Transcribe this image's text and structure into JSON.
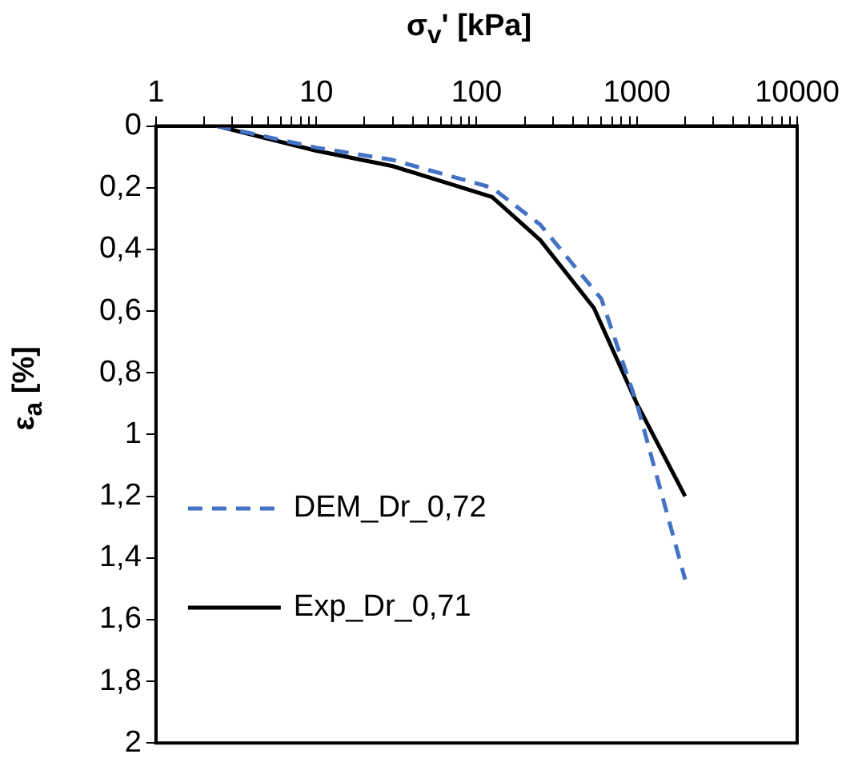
{
  "chart_data": {
    "type": "line",
    "xlabel": "σ$_{v}$' [kPa]",
    "ylabel": "ε$_{a}$ [%]",
    "log": "x",
    "xlim": [
      1,
      10000
    ],
    "xticks": [
      1,
      {
        "value": 2,
        "label": null
      },
      {
        "value": 3,
        "label": null
      },
      {
        "value": 4,
        "label": null
      },
      {
        "value": 5,
        "label": null
      },
      {
        "value": 6,
        "label": null
      },
      {
        "value": 7,
        "label": null
      },
      {
        "value": 8,
        "label": null
      },
      {
        "value": 9,
        "label": null
      },
      10,
      {
        "value": 20,
        "label": null
      },
      {
        "value": 30,
        "label": null
      },
      {
        "value": 40,
        "label": null
      },
      {
        "value": 50,
        "label": null
      },
      {
        "value": 60,
        "label": null
      },
      {
        "value": 70,
        "label": null
      },
      {
        "value": 80,
        "label": null
      },
      {
        "value": 90,
        "label": null
      },
      100,
      {
        "value": 200,
        "label": null
      },
      {
        "value": 300,
        "label": null
      },
      {
        "value": 400,
        "label": null
      },
      {
        "value": 500,
        "label": null
      },
      {
        "value": 600,
        "label": null
      },
      {
        "value": 700,
        "label": null
      },
      {
        "value": 800,
        "label": null
      },
      {
        "value": 900,
        "label": null
      },
      1000,
      {
        "value": 2000,
        "label": null
      },
      {
        "value": 3000,
        "label": null
      },
      {
        "value": 4000,
        "label": null
      },
      {
        "value": 5000,
        "label": null
      },
      {
        "value": 6000,
        "label": null
      },
      {
        "value": 7000,
        "label": null
      },
      {
        "value": 8000,
        "label": null
      },
      {
        "value": 9000,
        "label": null
      },
      10000
    ],
    "ylim": [
      2,
      0
    ],
    "yticks": [
      0,
      {
        "value": 0.2,
        "label": "0,2"
      },
      {
        "value": 0.4,
        "label": "0,4"
      },
      {
        "value": 0.6,
        "label": "0,6"
      },
      {
        "value": 0.8,
        "label": "0,8"
      },
      1,
      {
        "value": 1.2,
        "label": "1,2"
      },
      {
        "value": 1.4,
        "label": "1,4"
      },
      {
        "value": 1.6,
        "label": "1,6"
      },
      {
        "value": 1.8,
        "label": "1,8"
      },
      2
    ],
    "grid": false,
    "legend": "left",
    "marker": "none",
    "series": [
      {
        "name": "DEM_Dr_0,72",
        "color": "#4472c4",
        "line_style": "dashed",
        "x": [
          2.4,
          10,
          30,
          125,
          250,
          600,
          1000,
          2000
        ],
        "values": [
          0,
          0.07,
          0.11,
          0.2,
          0.32,
          0.56,
          0.9,
          1.47
        ]
      },
      {
        "name": "Exp_Dr_0,71",
        "color": "#000000",
        "line_style": "solid",
        "x": [
          2.4,
          10,
          30,
          125,
          250,
          540,
          1000,
          2000
        ],
        "values": [
          0,
          0.08,
          0.13,
          0.23,
          0.37,
          0.59,
          0.9,
          1.2
        ]
      }
    ]
  }
}
